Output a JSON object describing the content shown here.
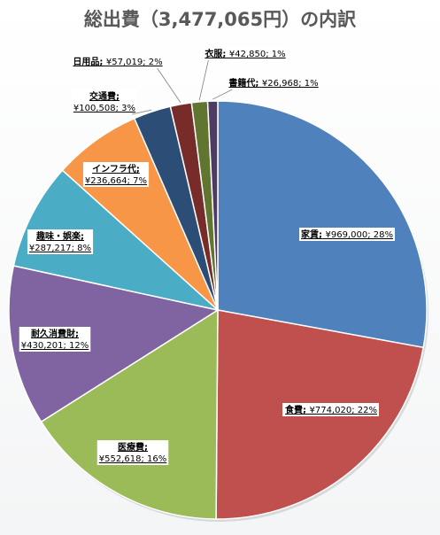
{
  "chart_data": {
    "type": "pie",
    "title": "総出費（3,477,065円）の内訳",
    "labels": [
      "家賃",
      "食費",
      "医療費",
      "耐久消費財",
      "趣味・娯楽",
      "インフラ代",
      "交通費",
      "日用品",
      "衣服",
      "書籍代"
    ],
    "values": [
      969000,
      774020,
      552618,
      430201,
      287217,
      236664,
      100508,
      57019,
      42850,
      26968
    ],
    "value_texts": [
      "¥969,000",
      "¥774,020",
      "¥552,618",
      "¥430,201",
      "¥287,217",
      "¥236,664",
      "¥100,508",
      "¥57,019",
      "¥42,850",
      "¥26,968"
    ],
    "percents": [
      "28%",
      "22%",
      "16%",
      "12%",
      "8%",
      "7%",
      "3%",
      "2%",
      "1%",
      "1%"
    ],
    "colors": [
      "#4F81BD",
      "#C0504D",
      "#9BBB59",
      "#8064A2",
      "#4BACC6",
      "#F79646",
      "#2C4D75",
      "#772C2A",
      "#5F7530",
      "#4D3B62"
    ],
    "start_angle": "12 o'clock",
    "direction": "clockwise",
    "legend": "none",
    "data_labels": "category; value; percent"
  }
}
